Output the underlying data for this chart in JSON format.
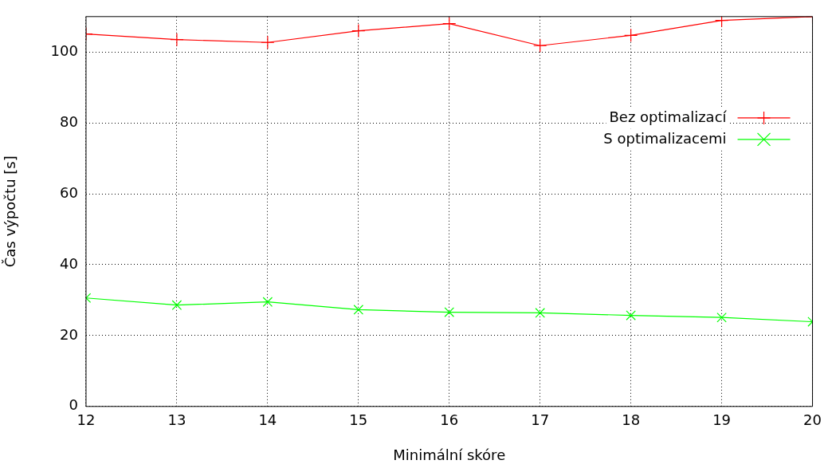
{
  "chart_data": {
    "type": "line",
    "xlabel": "Minimální skóre",
    "ylabel": "Čas výpočtu [s]",
    "x": [
      12,
      13,
      14,
      15,
      16,
      17,
      18,
      19,
      20
    ],
    "series": [
      {
        "name": "Bez optimalizací",
        "color": "#ff0000",
        "marker": "cross",
        "values": [
          105.1,
          103.5,
          102.7,
          106,
          108,
          101.8,
          104.7,
          108.9,
          110
        ]
      },
      {
        "name": "S optimalizacemi",
        "color": "#00ff00",
        "marker": "x",
        "values": [
          30.6,
          28.6,
          29.5,
          27.3,
          26.6,
          26.4,
          25.7,
          25.1,
          23.9
        ]
      }
    ],
    "xlim": [
      12,
      20
    ],
    "xticks": [
      12,
      13,
      14,
      15,
      16,
      17,
      18,
      19,
      20
    ],
    "ylim": [
      0,
      110
    ],
    "yticks": [
      0,
      20,
      40,
      60,
      80,
      100
    ],
    "grid": true,
    "legend": "right",
    "line_style": "solid"
  }
}
